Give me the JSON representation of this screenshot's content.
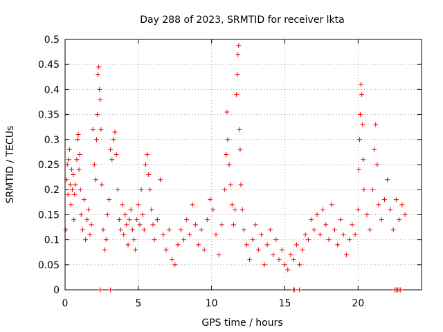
{
  "chart_data": {
    "type": "scatter",
    "title": "Day 288 of 2023, SRMTID for receiver lkta",
    "xlabel": "GPS time / hours",
    "ylabel": "SRMTID / TECUs",
    "xlim": [
      0,
      24.33
    ],
    "ylim": [
      0,
      0.5
    ],
    "xticks": [
      0,
      5,
      10,
      15,
      20
    ],
    "xtick_labels": [
      "0",
      "5",
      "10",
      "15",
      "20"
    ],
    "yticks": [
      0,
      0.05,
      0.1,
      0.15,
      0.2,
      0.25,
      0.3,
      0.35,
      0.4,
      0.45,
      0.5
    ],
    "ytick_labels": [
      "0",
      "0.05",
      "0.1",
      "0.15",
      "0.2",
      "0.25",
      "0.3",
      "0.35",
      "0.4",
      "0.45",
      "0.5"
    ],
    "grid": true,
    "marker": "+",
    "color": "#ee0000",
    "series": [
      {
        "name": "SRMTID",
        "points": [
          [
            0.05,
            0.12
          ],
          [
            0.1,
            0.22
          ],
          [
            0.15,
            0.25
          ],
          [
            0.2,
            0.19
          ],
          [
            0.25,
            0.26
          ],
          [
            0.3,
            0.28
          ],
          [
            0.35,
            0.21
          ],
          [
            0.4,
            0.17
          ],
          [
            0.45,
            0.24
          ],
          [
            0.5,
            0.2
          ],
          [
            0.55,
            0.23
          ],
          [
            0.6,
            0.14
          ],
          [
            0.65,
            0.19
          ],
          [
            0.7,
            0.21
          ],
          [
            0.8,
            0.26
          ],
          [
            0.85,
            0.3
          ],
          [
            0.9,
            0.31
          ],
          [
            0.95,
            0.24
          ],
          [
            1.0,
            0.27
          ],
          [
            1.05,
            0.2
          ],
          [
            1.1,
            0.15
          ],
          [
            1.2,
            0.12
          ],
          [
            1.3,
            0.18
          ],
          [
            1.4,
            0.1
          ],
          [
            1.5,
            0.14
          ],
          [
            1.6,
            0.16
          ],
          [
            1.7,
            0.11
          ],
          [
            1.8,
            0.13
          ],
          [
            1.9,
            0.32
          ],
          [
            2.0,
            0.25
          ],
          [
            2.1,
            0.22
          ],
          [
            2.15,
            0.3
          ],
          [
            2.2,
            0.35
          ],
          [
            2.25,
            0.43
          ],
          [
            2.3,
            0.445
          ],
          [
            2.35,
            0.4
          ],
          [
            2.4,
            0.38
          ],
          [
            2.45,
            0.32
          ],
          [
            2.5,
            0.21
          ],
          [
            2.6,
            0.12
          ],
          [
            2.7,
            0.08
          ],
          [
            2.8,
            0.1
          ],
          [
            2.9,
            0.15
          ],
          [
            3.0,
            0.18
          ],
          [
            3.1,
            0.28
          ],
          [
            3.2,
            0.26
          ],
          [
            3.3,
            0.3
          ],
          [
            3.4,
            0.315
          ],
          [
            3.5,
            0.27
          ],
          [
            3.6,
            0.2
          ],
          [
            3.7,
            0.14
          ],
          [
            3.8,
            0.12
          ],
          [
            3.9,
            0.17
          ],
          [
            4.0,
            0.11
          ],
          [
            4.1,
            0.15
          ],
          [
            4.2,
            0.13
          ],
          [
            4.3,
            0.09
          ],
          [
            4.4,
            0.14
          ],
          [
            4.5,
            0.16
          ],
          [
            4.6,
            0.12
          ],
          [
            4.7,
            0.1
          ],
          [
            4.8,
            0.08
          ],
          [
            4.9,
            0.14
          ],
          [
            5.0,
            0.17
          ],
          [
            5.1,
            0.13
          ],
          [
            5.2,
            0.2
          ],
          [
            5.3,
            0.15
          ],
          [
            5.4,
            0.12
          ],
          [
            5.5,
            0.25
          ],
          [
            5.6,
            0.27
          ],
          [
            5.7,
            0.23
          ],
          [
            5.8,
            0.2
          ],
          [
            5.9,
            0.16
          ],
          [
            6.0,
            0.13
          ],
          [
            6.1,
            0.1
          ],
          [
            6.3,
            0.14
          ],
          [
            6.5,
            0.22
          ],
          [
            6.7,
            0.11
          ],
          [
            6.9,
            0.08
          ],
          [
            7.1,
            0.12
          ],
          [
            7.3,
            0.06
          ],
          [
            7.5,
            0.05
          ],
          [
            7.7,
            0.09
          ],
          [
            7.9,
            0.12
          ],
          [
            8.1,
            0.1
          ],
          [
            8.3,
            0.14
          ],
          [
            8.5,
            0.11
          ],
          [
            8.7,
            0.17
          ],
          [
            8.9,
            0.13
          ],
          [
            9.1,
            0.09
          ],
          [
            9.3,
            0.12
          ],
          [
            9.5,
            0.08
          ],
          [
            9.7,
            0.14
          ],
          [
            9.9,
            0.18
          ],
          [
            10.1,
            0.16
          ],
          [
            10.3,
            0.11
          ],
          [
            10.5,
            0.07
          ],
          [
            10.7,
            0.13
          ],
          [
            10.9,
            0.2
          ],
          [
            11.0,
            0.27
          ],
          [
            11.05,
            0.355
          ],
          [
            11.1,
            0.3
          ],
          [
            11.2,
            0.25
          ],
          [
            11.3,
            0.21
          ],
          [
            11.4,
            0.17
          ],
          [
            11.5,
            0.13
          ],
          [
            11.6,
            0.16
          ],
          [
            11.7,
            0.39
          ],
          [
            11.75,
            0.43
          ],
          [
            11.8,
            0.47
          ],
          [
            11.85,
            0.488
          ],
          [
            11.9,
            0.32
          ],
          [
            11.95,
            0.28
          ],
          [
            12.0,
            0.21
          ],
          [
            12.1,
            0.16
          ],
          [
            12.2,
            0.12
          ],
          [
            12.4,
            0.09
          ],
          [
            12.6,
            0.06
          ],
          [
            12.8,
            0.1
          ],
          [
            13.0,
            0.13
          ],
          [
            13.2,
            0.08
          ],
          [
            13.4,
            0.11
          ],
          [
            13.6,
            0.05
          ],
          [
            13.8,
            0.09
          ],
          [
            14.0,
            0.12
          ],
          [
            14.2,
            0.07
          ],
          [
            14.4,
            0.1
          ],
          [
            14.6,
            0.06
          ],
          [
            14.8,
            0.08
          ],
          [
            15.0,
            0.05
          ],
          [
            15.2,
            0.04
          ],
          [
            15.4,
            0.07
          ],
          [
            15.6,
            0.06
          ],
          [
            15.8,
            0.09
          ],
          [
            16.0,
            0.05
          ],
          [
            16.2,
            0.08
          ],
          [
            16.4,
            0.11
          ],
          [
            16.6,
            0.1
          ],
          [
            16.8,
            0.14
          ],
          [
            17.0,
            0.12
          ],
          [
            17.2,
            0.15
          ],
          [
            17.4,
            0.11
          ],
          [
            17.6,
            0.16
          ],
          [
            17.8,
            0.13
          ],
          [
            18.0,
            0.1
          ],
          [
            18.2,
            0.17
          ],
          [
            18.4,
            0.12
          ],
          [
            18.6,
            0.09
          ],
          [
            18.8,
            0.14
          ],
          [
            19.0,
            0.11
          ],
          [
            19.2,
            0.07
          ],
          [
            19.4,
            0.1
          ],
          [
            19.6,
            0.13
          ],
          [
            19.8,
            0.11
          ],
          [
            20.0,
            0.16
          ],
          [
            20.05,
            0.24
          ],
          [
            20.1,
            0.3
          ],
          [
            20.15,
            0.35
          ],
          [
            20.2,
            0.41
          ],
          [
            20.25,
            0.39
          ],
          [
            20.3,
            0.33
          ],
          [
            20.35,
            0.26
          ],
          [
            20.4,
            0.2
          ],
          [
            20.6,
            0.15
          ],
          [
            20.8,
            0.12
          ],
          [
            21.0,
            0.2
          ],
          [
            21.1,
            0.28
          ],
          [
            21.2,
            0.33
          ],
          [
            21.3,
            0.25
          ],
          [
            21.4,
            0.17
          ],
          [
            21.6,
            0.14
          ],
          [
            21.8,
            0.18
          ],
          [
            22.0,
            0.22
          ],
          [
            22.2,
            0.16
          ],
          [
            22.4,
            0.12
          ],
          [
            22.6,
            0.18
          ],
          [
            22.8,
            0.14
          ],
          [
            23.0,
            0.17
          ],
          [
            23.2,
            0.15
          ]
        ]
      }
    ],
    "zero_markers": [
      2.4,
      3.1,
      15.6,
      15.65,
      16.0,
      22.5,
      22.6,
      22.7,
      22.8,
      22.9
    ]
  }
}
